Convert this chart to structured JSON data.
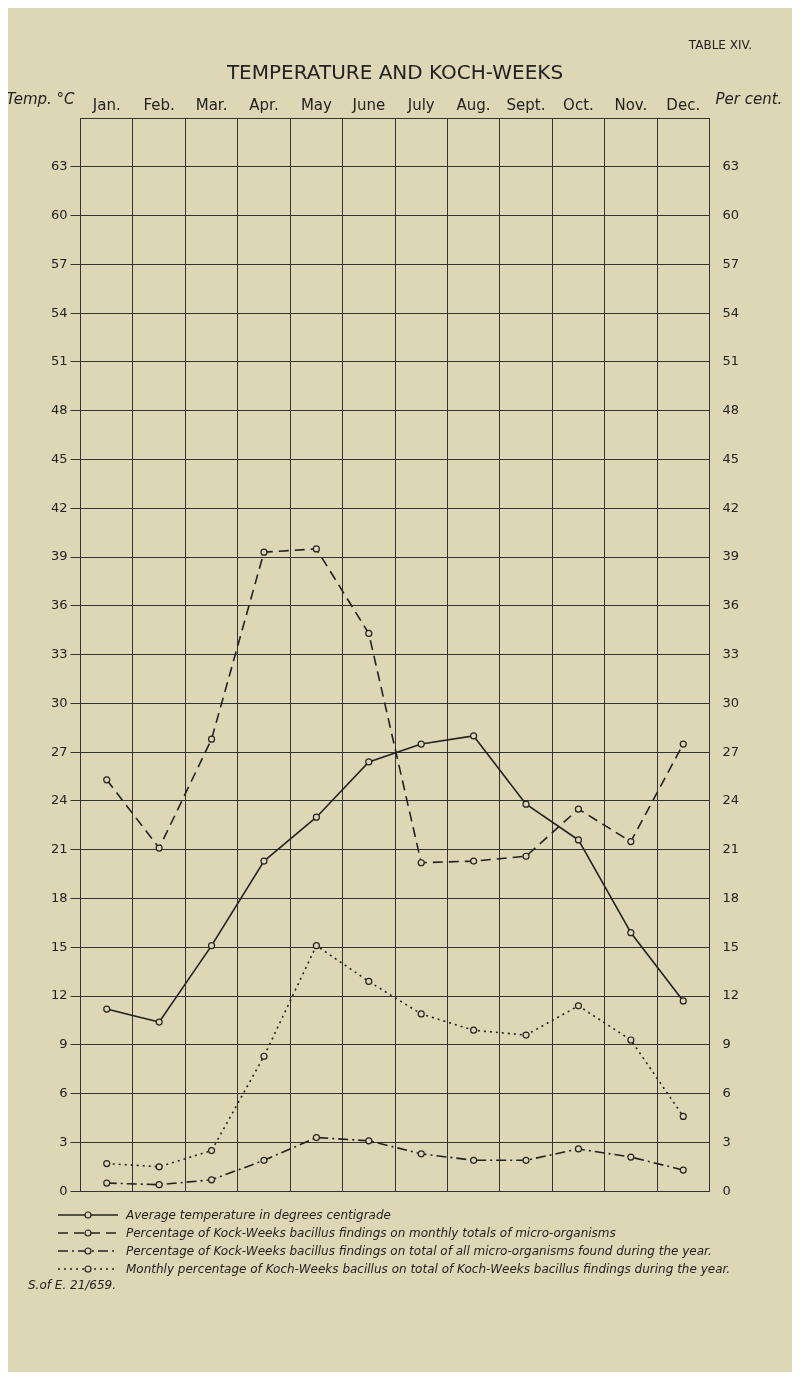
{
  "chart_data": {
    "type": "line",
    "title": "TEMPERATURE AND KOCH-WEEKS",
    "ylabel": "Temp. °C",
    "y2label": "Per cent.",
    "categories": [
      "Jan.",
      "Feb.",
      "Mar.",
      "Apr.",
      "May",
      "June",
      "July",
      "Aug.",
      "Sept.",
      "Oct.",
      "Nov.",
      "Dec."
    ],
    "series": [
      {
        "name": "Average temperature in degrees centigrade",
        "color": "#222222",
        "line_style": "solid",
        "values": [
          11.2,
          10.4,
          15.1,
          20.3,
          23.0,
          26.4,
          27.5,
          28.0,
          23.8,
          21.6,
          15.9,
          11.7
        ]
      },
      {
        "name": "Percentage of Kock-Weeks bacillus findings on monthly totals of micro-organisms",
        "color": "#222222",
        "line_style": "dashed",
        "axis": "y2",
        "values": [
          25.3,
          21.1,
          27.8,
          39.3,
          39.5,
          34.3,
          20.2,
          20.3,
          20.6,
          23.5,
          21.5,
          27.5
        ]
      },
      {
        "name": "Percentage of Kock-Weeks bacillus findings on total of all micro-organisms found during the year.",
        "color": "#222222",
        "line_style": "dashdot",
        "axis": "y2",
        "values": [
          0.5,
          0.4,
          0.7,
          1.9,
          3.3,
          3.1,
          2.3,
          1.9,
          1.9,
          2.6,
          2.1,
          1.3
        ]
      },
      {
        "name": "Monthly percentage of Koch-Weeks bacillus on total of Koch-Weeks bacillus findings during the year.",
        "color": "#222222",
        "line_style": "dotted",
        "axis": "y2",
        "values": [
          1.7,
          1.5,
          2.5,
          8.3,
          15.1,
          12.9,
          10.9,
          9.9,
          9.6,
          11.4,
          9.3,
          4.6
        ]
      }
    ],
    "ylim": [
      0,
      66
    ],
    "yticks": [
      0,
      3,
      6,
      9,
      12,
      15,
      18,
      21,
      24,
      27,
      30,
      33,
      36,
      39,
      42,
      45,
      48,
      51,
      54,
      57,
      60,
      63
    ],
    "y2lim": [
      0,
      66
    ],
    "y2ticks": [
      0,
      3,
      6,
      9,
      12,
      15,
      18,
      21,
      24,
      27,
      30,
      33,
      36,
      39,
      42,
      45,
      48,
      51,
      54,
      57,
      60,
      63
    ],
    "grid": true,
    "marker": "circle",
    "legend": "bottom",
    "annotations": [
      "TABLE XIV.",
      "S.of E. 21/659."
    ]
  }
}
